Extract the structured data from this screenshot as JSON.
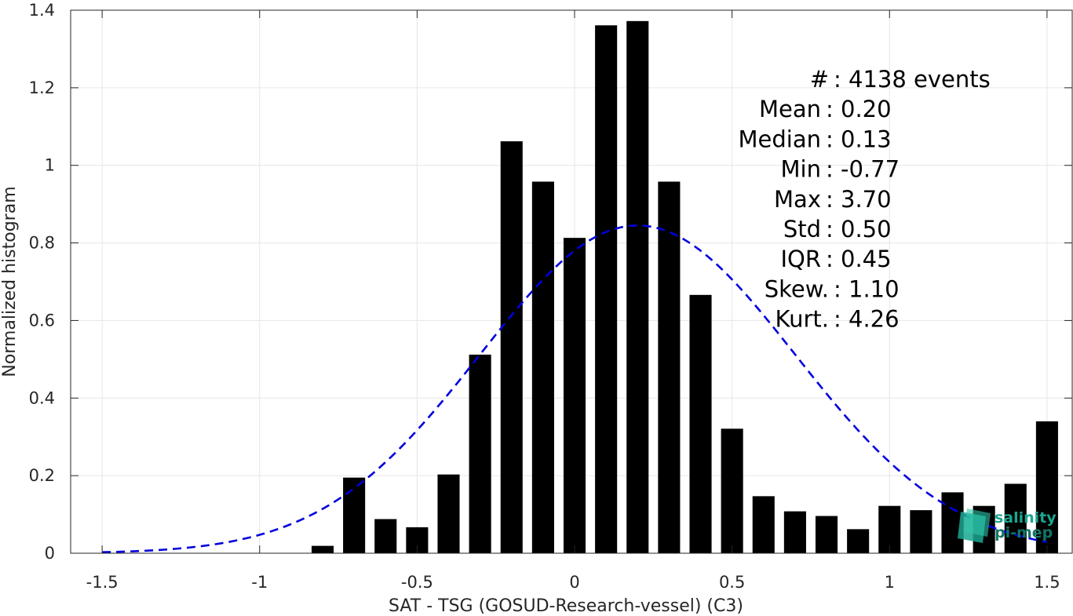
{
  "chart_data": {
    "type": "bar",
    "xlabel": "SAT - TSG (GOSUD-Research-vessel) (C3)",
    "ylabel": "Normalized histogram",
    "xlim": [
      -1.6,
      1.58
    ],
    "ylim": [
      0,
      1.4
    ],
    "grid": true,
    "x_ticks": [
      -1.5,
      -1,
      -0.5,
      0,
      0.5,
      1,
      1.5
    ],
    "x_tick_labels": [
      "-1.5",
      "-1",
      "-0.5",
      "0",
      "0.5",
      "1",
      "1.5"
    ],
    "y_ticks": [
      0,
      0.2,
      0.4,
      0.6,
      0.8,
      1,
      1.2,
      1.4
    ],
    "y_tick_labels": [
      "0",
      "0.2",
      "0.4",
      "0.6",
      "0.8",
      "1",
      "1.2",
      "1.4"
    ],
    "bar_width": 0.07,
    "x": [
      -0.8,
      -0.7,
      -0.6,
      -0.5,
      -0.4,
      -0.3,
      -0.2,
      -0.1,
      0.0,
      0.1,
      0.2,
      0.3,
      0.4,
      0.5,
      0.6,
      0.7,
      0.8,
      0.9,
      1.0,
      1.1,
      1.2,
      1.3,
      1.4,
      1.5
    ],
    "values": [
      0.019,
      0.195,
      0.088,
      0.067,
      0.203,
      0.512,
      1.062,
      0.958,
      0.813,
      1.361,
      1.372,
      0.958,
      0.666,
      0.321,
      0.147,
      0.108,
      0.096,
      0.062,
      0.122,
      0.111,
      0.157,
      0.122,
      0.179,
      0.34
    ],
    "fit": {
      "type": "normal",
      "mean": 0.2,
      "std": 0.5,
      "peak": 0.845,
      "x_range": [
        -1.5,
        1.5
      ]
    },
    "stats": [
      {
        "label": "#  ",
        "value": ": 4138 events"
      },
      {
        "label": "Mean",
        "value": ": 0.20"
      },
      {
        "label": "Median",
        "value": ": 0.13"
      },
      {
        "label": "Min",
        "value": ": -0.77"
      },
      {
        "label": "Max",
        "value": ": 3.70"
      },
      {
        "label": "Std",
        "value": ": 0.50"
      },
      {
        "label": "IQR",
        "value": ": 0.45"
      },
      {
        "label": "Skew.",
        "value": ": 1.10"
      },
      {
        "label": "Kurt.",
        "value": ": 4.26"
      }
    ]
  },
  "logo": {
    "line1": "salinity",
    "line2": "pi-mep"
  },
  "colors": {
    "bar": "#000000",
    "fit_line": "#0000dd",
    "grid": "#e6e6e6",
    "axis": "#262626",
    "logo_teal": "#1aa68f"
  }
}
